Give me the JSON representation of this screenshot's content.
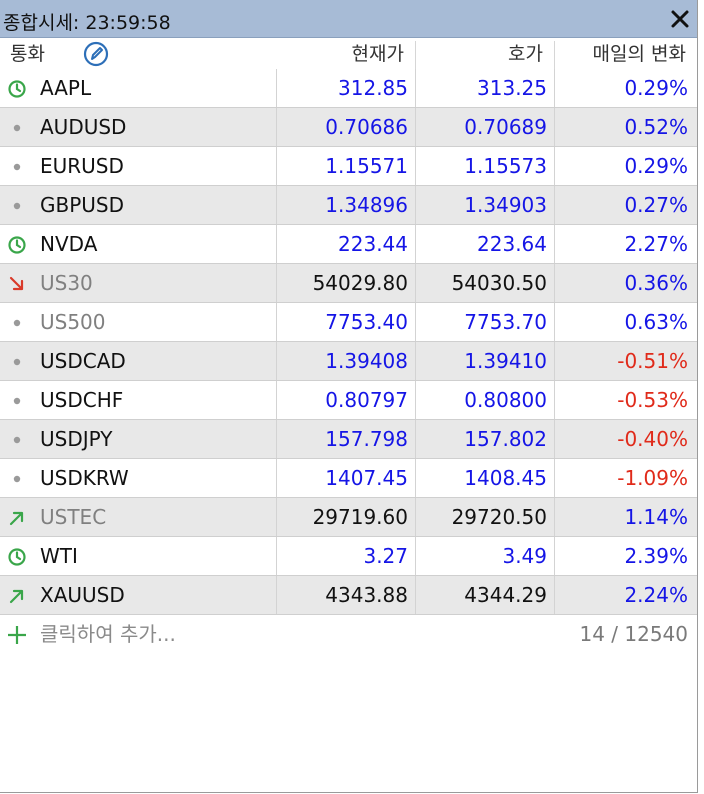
{
  "window": {
    "title": "종합시세: 23:59:58"
  },
  "header": {
    "symbol": "통화",
    "bid": "현재가",
    "ask": "호가",
    "change": "매일의 변화"
  },
  "colors": {
    "blue": "#1515e6",
    "red": "#e02a1a",
    "black": "#111111",
    "gray_symbol": "#808080",
    "green_icon": "#3aa64a",
    "red_icon": "#d93a2a",
    "dot": "#9a9a9a",
    "accent_edit": "#2d6fb8"
  },
  "rows": [
    {
      "icon": "clock-icon",
      "symbol": "AAPL",
      "bid": "312.85",
      "ask": "313.25",
      "change": "0.29%",
      "price_color": "blue",
      "change_color": "blue",
      "symbol_color": "black"
    },
    {
      "icon": "dot-icon",
      "symbol": "AUDUSD",
      "bid": "0.70686",
      "ask": "0.70689",
      "change": "0.52%",
      "price_color": "blue",
      "change_color": "blue",
      "symbol_color": "black"
    },
    {
      "icon": "dot-icon",
      "symbol": "EURUSD",
      "bid": "1.15571",
      "ask": "1.15573",
      "change": "0.29%",
      "price_color": "blue",
      "change_color": "blue",
      "symbol_color": "black"
    },
    {
      "icon": "dot-icon",
      "symbol": "GBPUSD",
      "bid": "1.34896",
      "ask": "1.34903",
      "change": "0.27%",
      "price_color": "blue",
      "change_color": "blue",
      "symbol_color": "black"
    },
    {
      "icon": "clock-icon",
      "symbol": "NVDA",
      "bid": "223.44",
      "ask": "223.64",
      "change": "2.27%",
      "price_color": "blue",
      "change_color": "blue",
      "symbol_color": "black"
    },
    {
      "icon": "arrow-down-right-icon",
      "symbol": "US30",
      "bid": "54029.80",
      "ask": "54030.50",
      "change": "0.36%",
      "price_color": "black",
      "change_color": "blue",
      "symbol_color": "gray_symbol"
    },
    {
      "icon": "dot-icon",
      "symbol": "US500",
      "bid": "7753.40",
      "ask": "7753.70",
      "change": "0.63%",
      "price_color": "blue",
      "change_color": "blue",
      "symbol_color": "gray_symbol"
    },
    {
      "icon": "dot-icon",
      "symbol": "USDCAD",
      "bid": "1.39408",
      "ask": "1.39410",
      "change": "-0.51%",
      "price_color": "blue",
      "change_color": "red",
      "symbol_color": "black"
    },
    {
      "icon": "dot-icon",
      "symbol": "USDCHF",
      "bid": "0.80797",
      "ask": "0.80800",
      "change": "-0.53%",
      "price_color": "blue",
      "change_color": "red",
      "symbol_color": "black"
    },
    {
      "icon": "dot-icon",
      "symbol": "USDJPY",
      "bid": "157.798",
      "ask": "157.802",
      "change": "-0.40%",
      "price_color": "blue",
      "change_color": "red",
      "symbol_color": "black"
    },
    {
      "icon": "dot-icon",
      "symbol": "USDKRW",
      "bid": "1407.45",
      "ask": "1408.45",
      "change": "-1.09%",
      "price_color": "blue",
      "change_color": "red",
      "symbol_color": "black"
    },
    {
      "icon": "arrow-up-right-icon",
      "symbol": "USTEC",
      "bid": "29719.60",
      "ask": "29720.50",
      "change": "1.14%",
      "price_color": "black",
      "change_color": "blue",
      "symbol_color": "gray_symbol"
    },
    {
      "icon": "clock-icon",
      "symbol": "WTI",
      "bid": "3.27",
      "ask": "3.49",
      "change": "2.39%",
      "price_color": "blue",
      "change_color": "blue",
      "symbol_color": "black"
    },
    {
      "icon": "arrow-up-right-icon",
      "symbol": "XAUUSD",
      "bid": "4343.88",
      "ask": "4344.29",
      "change": "2.24%",
      "price_color": "black",
      "change_color": "blue",
      "symbol_color": "black"
    }
  ],
  "footer": {
    "add_label": "클릭하여 추가...",
    "count": "14 / 12540"
  }
}
